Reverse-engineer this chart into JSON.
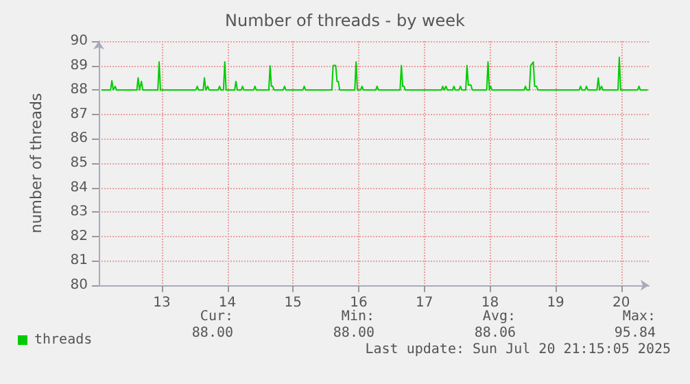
{
  "chart_data": {
    "type": "line",
    "title": "Number of threads - by week",
    "ylabel": "number of threads",
    "xlim": [
      12.04,
      20.42
    ],
    "xticks": [
      13,
      14,
      15,
      16,
      17,
      18,
      19,
      20
    ],
    "ylim": [
      80,
      90
    ],
    "yticks": [
      80,
      81,
      82,
      83,
      84,
      85,
      86,
      87,
      88,
      89,
      90
    ],
    "grid": true,
    "legend": "bottom left",
    "marker": "none",
    "line_style": "solid",
    "annotations": [
      "Cur:",
      "Min:",
      "Avg:",
      "Max:",
      "88.00",
      "88.00",
      "88.06",
      "95.84",
      "Last update: Sun Jul 20 21:15:05 2025"
    ],
    "series": [
      {
        "name": "threads",
        "color": "#00cc00",
        "x": [
          12.08,
          12.22,
          12.24,
          12.26,
          12.27,
          12.29,
          12.31,
          12.62,
          12.64,
          12.66,
          12.67,
          12.69,
          12.71,
          12.94,
          12.96,
          12.98,
          13.52,
          13.54,
          13.56,
          13.63,
          13.65,
          13.67,
          13.68,
          13.7,
          13.72,
          13.86,
          13.88,
          13.9,
          13.94,
          13.96,
          13.98,
          14.11,
          14.13,
          14.15,
          14.21,
          14.23,
          14.25,
          14.4,
          14.42,
          14.44,
          14.63,
          14.65,
          14.67,
          14.69,
          14.71,
          14.85,
          14.87,
          14.89,
          15.15,
          15.17,
          15.19,
          15.59,
          15.61,
          15.65,
          15.67,
          15.69,
          15.71,
          15.94,
          15.96,
          15.98,
          16.03,
          16.05,
          16.07,
          16.26,
          16.28,
          16.3,
          16.63,
          16.65,
          16.67,
          16.69,
          16.71,
          16.73,
          17.26,
          17.28,
          17.3,
          17.31,
          17.33,
          17.35,
          17.43,
          17.45,
          17.47,
          17.53,
          17.55,
          17.57,
          17.63,
          17.65,
          17.67,
          17.71,
          17.73,
          17.95,
          17.97,
          17.99,
          18.01,
          18.03,
          18.52,
          18.54,
          18.56,
          18.6,
          18.62,
          18.66,
          18.68,
          18.71,
          18.73,
          19.36,
          19.38,
          19.4,
          19.45,
          19.47,
          19.49,
          19.63,
          19.65,
          19.67,
          19.7,
          19.72,
          19.95,
          19.97,
          19.99,
          20.25,
          20.27,
          20.29,
          20.4
        ],
        "values": [
          88,
          88,
          88.38,
          88,
          88,
          88.15,
          88,
          88,
          88.5,
          88,
          88,
          88.35,
          88,
          88,
          89.15,
          88,
          88,
          88.15,
          88,
          88,
          88.5,
          88,
          88,
          88.15,
          88,
          88,
          88.15,
          88,
          88,
          89.15,
          88,
          88,
          88.35,
          88,
          88,
          88.15,
          88,
          88,
          88.15,
          88,
          88,
          88.99,
          88.15,
          88.15,
          88,
          88,
          88.15,
          88,
          88,
          88.15,
          88,
          88,
          89.0,
          89.0,
          88.35,
          88.35,
          88,
          88,
          89.15,
          88,
          88,
          88.15,
          88,
          88,
          88.15,
          88,
          88,
          89.0,
          88.15,
          88.15,
          88,
          88,
          88,
          88.15,
          88,
          88,
          88.15,
          88,
          88,
          88.15,
          88,
          88,
          88.15,
          88,
          88,
          89.0,
          88.2,
          88.2,
          88,
          88,
          89.15,
          88,
          88.15,
          88,
          88,
          88.15,
          88,
          88,
          89.0,
          89.15,
          88.15,
          88.15,
          88,
          88,
          88.15,
          88,
          88,
          88.15,
          88,
          88,
          88.5,
          88,
          88.15,
          88,
          88,
          89.34,
          88,
          88,
          88.15,
          88,
          88
        ]
      }
    ]
  }
}
